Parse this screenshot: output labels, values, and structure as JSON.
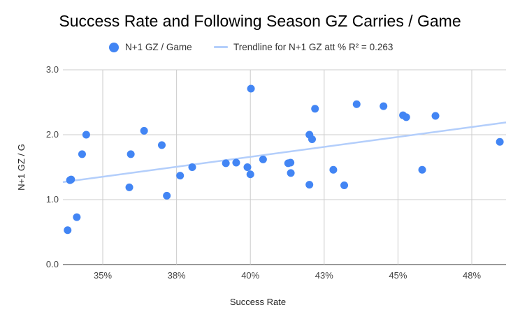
{
  "chart_data": {
    "type": "scatter",
    "title": "Success Rate and Following Season GZ Carries / Game",
    "xlabel": "Success Rate",
    "ylabel": "N+1 GZ / G",
    "xlim": [
      0.3365,
      0.4866
    ],
    "ylim": [
      0,
      3.0
    ],
    "x_ticks": [
      {
        "value": 0.35,
        "label": "35%"
      },
      {
        "value": 0.375,
        "label": "38%"
      },
      {
        "value": 0.4,
        "label": "40%"
      },
      {
        "value": 0.425,
        "label": "43%"
      },
      {
        "value": 0.45,
        "label": "45%"
      },
      {
        "value": 0.475,
        "label": "48%"
      }
    ],
    "y_ticks": [
      {
        "value": 0,
        "label": "0.0"
      },
      {
        "value": 1,
        "label": "1.0"
      },
      {
        "value": 2,
        "label": "2.0"
      },
      {
        "value": 3,
        "label": "3.0"
      }
    ],
    "grid": true,
    "legend_position": "top",
    "series": [
      {
        "name": "N+1 GZ / Game",
        "color": "#4285f4",
        "points": [
          {
            "x": 0.3381,
            "y": 0.53
          },
          {
            "x": 0.3389,
            "y": 1.3
          },
          {
            "x": 0.3393,
            "y": 1.31
          },
          {
            "x": 0.3412,
            "y": 0.73
          },
          {
            "x": 0.343,
            "y": 1.7
          },
          {
            "x": 0.3444,
            "y": 2.0
          },
          {
            "x": 0.359,
            "y": 1.19
          },
          {
            "x": 0.3595,
            "y": 1.7
          },
          {
            "x": 0.364,
            "y": 2.06
          },
          {
            "x": 0.37,
            "y": 1.84
          },
          {
            "x": 0.3717,
            "y": 1.06
          },
          {
            "x": 0.3762,
            "y": 1.37
          },
          {
            "x": 0.3803,
            "y": 1.5
          },
          {
            "x": 0.3917,
            "y": 1.56
          },
          {
            "x": 0.3952,
            "y": 1.57
          },
          {
            "x": 0.399,
            "y": 1.5
          },
          {
            "x": 0.4,
            "y": 1.39
          },
          {
            "x": 0.4002,
            "y": 2.71
          },
          {
            "x": 0.4043,
            "y": 1.62
          },
          {
            "x": 0.4128,
            "y": 1.56
          },
          {
            "x": 0.4137,
            "y": 1.41
          },
          {
            "x": 0.4136,
            "y": 1.57
          },
          {
            "x": 0.42,
            "y": 1.23
          },
          {
            "x": 0.42,
            "y": 2.0
          },
          {
            "x": 0.4209,
            "y": 1.93
          },
          {
            "x": 0.4219,
            "y": 2.4
          },
          {
            "x": 0.4281,
            "y": 1.46
          },
          {
            "x": 0.4318,
            "y": 1.22
          },
          {
            "x": 0.436,
            "y": 2.47
          },
          {
            "x": 0.4451,
            "y": 2.44
          },
          {
            "x": 0.4517,
            "y": 2.3
          },
          {
            "x": 0.4528,
            "y": 2.27
          },
          {
            "x": 0.4582,
            "y": 1.46
          },
          {
            "x": 0.4627,
            "y": 2.29
          },
          {
            "x": 0.4845,
            "y": 1.89
          }
        ]
      },
      {
        "name": "Trendline for N+1 GZ att % R² = 0.263",
        "type": "trendline",
        "color": "#b3cefb",
        "x": [
          0.3365,
          0.4866
        ],
        "y": [
          1.27,
          2.19
        ]
      }
    ]
  }
}
